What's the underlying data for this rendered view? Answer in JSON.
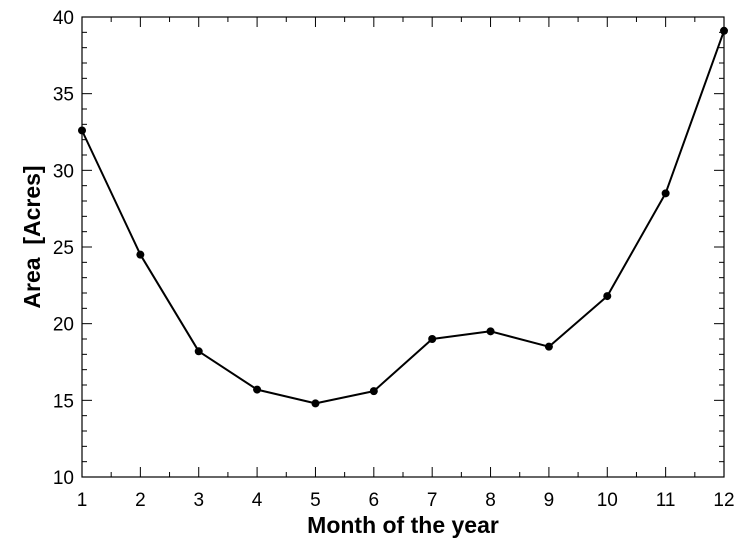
{
  "chart_data": {
    "type": "line",
    "title": "",
    "xlabel": "Month of the year",
    "ylabel": "Area  [Acres]",
    "xlim": [
      1,
      12
    ],
    "ylim": [
      10,
      40
    ],
    "x_ticks": [
      1,
      2,
      3,
      4,
      5,
      6,
      7,
      8,
      9,
      10,
      11,
      12
    ],
    "y_ticks": [
      10,
      15,
      20,
      25,
      30,
      35,
      40
    ],
    "x_minor_step": 0.5,
    "y_minor_step": 1,
    "grid": false,
    "legend": false,
    "series": [
      {
        "x": [
          1,
          2,
          3,
          4,
          5,
          6,
          7,
          8,
          9,
          10,
          11,
          12
        ],
        "values": [
          32.6,
          24.5,
          18.2,
          15.7,
          14.8,
          15.6,
          19.0,
          19.5,
          18.5,
          21.8,
          28.5,
          39.1
        ],
        "color": "#000000",
        "marker": "circle"
      }
    ]
  }
}
